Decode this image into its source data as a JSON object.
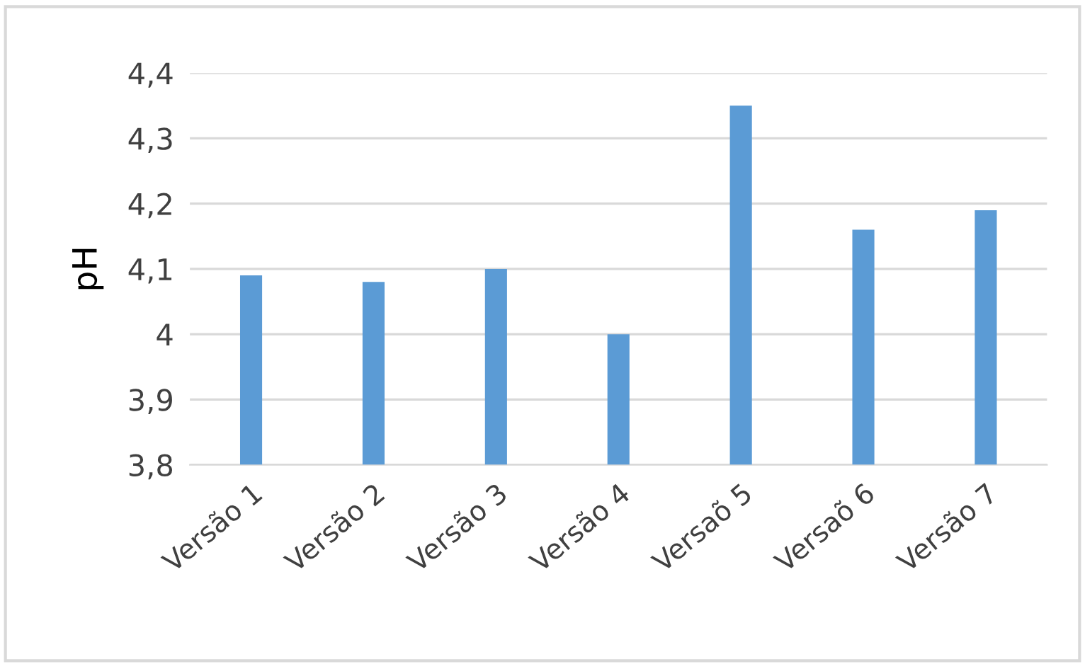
{
  "chart_data": {
    "type": "bar",
    "ylabel": "pH",
    "categories": [
      "Versão 1",
      "Versão 2",
      "Versão 3",
      "Versão 4",
      "Versaõ 5",
      "Versaõ 6",
      "Versão 7"
    ],
    "values": [
      4.09,
      4.08,
      4.1,
      4.0,
      4.35,
      4.16,
      4.19
    ],
    "color": "#5b9bd5",
    "ylim": [
      3.8,
      4.4
    ],
    "yticks": [
      {
        "value": 3.8,
        "label": "3,8"
      },
      {
        "value": 3.9,
        "label": "3,9"
      },
      {
        "value": 4,
        "label": "4"
      },
      {
        "value": 4.1,
        "label": "4,1"
      },
      {
        "value": 4.2,
        "label": "4,2"
      },
      {
        "value": 4.3,
        "label": "4,3"
      },
      {
        "value": 4.4,
        "label": "4,4"
      }
    ],
    "grid": "y"
  }
}
